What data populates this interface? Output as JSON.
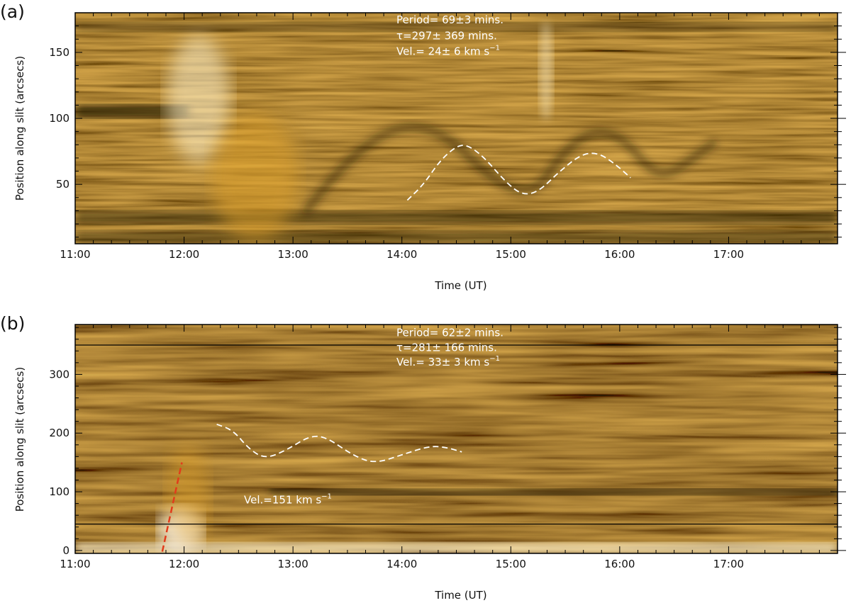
{
  "colors": {
    "dark": "#1e1200",
    "mid": "#8a5a06",
    "bright": "#e0a22a",
    "glow": "#fff2cc",
    "fit_curve": "#ffffff",
    "fit_line": "#e23b1b"
  },
  "chart_data": [
    {
      "type": "heatmap",
      "panel_label": "(a)",
      "xlabel": "Time (UT)",
      "ylabel": "Position along slit (arcsecs)",
      "xlim": [
        11.0,
        18.0
      ],
      "ylim": [
        5,
        180
      ],
      "x_ticks": [
        {
          "value": 11,
          "label": "11:00"
        },
        {
          "value": 12,
          "label": "12:00"
        },
        {
          "value": 13,
          "label": "13:00"
        },
        {
          "value": 14,
          "label": "14:00"
        },
        {
          "value": 15,
          "label": "15:00"
        },
        {
          "value": 16,
          "label": "16:00"
        },
        {
          "value": 17,
          "label": "17:00"
        }
      ],
      "y_ticks": [
        {
          "value": 50,
          "label": "50"
        },
        {
          "value": 100,
          "label": "100"
        },
        {
          "value": 150,
          "label": "150"
        }
      ],
      "annotations": [
        {
          "text": "Period= 69±3 mins.",
          "x": 13.95,
          "y": 172
        },
        {
          "text": "τ=297± 369 mins.",
          "x": 13.95,
          "y": 160
        },
        {
          "text": "Vel.= 24± 6 km s",
          "sup": "−1",
          "x": 13.95,
          "y": 148
        }
      ],
      "fit_curve": [
        {
          "x": 14.05,
          "y": 38
        },
        {
          "x": 14.2,
          "y": 50
        },
        {
          "x": 14.35,
          "y": 68
        },
        {
          "x": 14.5,
          "y": 79
        },
        {
          "x": 14.6,
          "y": 80
        },
        {
          "x": 14.75,
          "y": 71
        },
        {
          "x": 14.95,
          "y": 52
        },
        {
          "x": 15.1,
          "y": 42
        },
        {
          "x": 15.25,
          "y": 44
        },
        {
          "x": 15.45,
          "y": 60
        },
        {
          "x": 15.65,
          "y": 73
        },
        {
          "x": 15.8,
          "y": 74
        },
        {
          "x": 15.95,
          "y": 66
        },
        {
          "x": 16.1,
          "y": 55
        }
      ],
      "horizontal_lines": []
    },
    {
      "type": "heatmap",
      "panel_label": "(b)",
      "xlabel": "Time (UT)",
      "ylabel": "Position along slit (arcsecs)",
      "xlim": [
        11.0,
        18.0
      ],
      "ylim": [
        -5,
        385
      ],
      "x_ticks": [
        {
          "value": 11,
          "label": "11:00"
        },
        {
          "value": 12,
          "label": "12:00"
        },
        {
          "value": 13,
          "label": "13:00"
        },
        {
          "value": 14,
          "label": "14:00"
        },
        {
          "value": 15,
          "label": "15:00"
        },
        {
          "value": 16,
          "label": "16:00"
        },
        {
          "value": 17,
          "label": "17:00"
        }
      ],
      "y_ticks": [
        {
          "value": 0,
          "label": "0"
        },
        {
          "value": 100,
          "label": "100"
        },
        {
          "value": 200,
          "label": "200"
        },
        {
          "value": 300,
          "label": "300"
        }
      ],
      "annotations": [
        {
          "text": "Period= 62±2 mins.",
          "x": 13.95,
          "y": 365
        },
        {
          "text": "τ=281± 166 mins.",
          "x": 13.95,
          "y": 340
        },
        {
          "text": "Vel.= 33± 3 km s",
          "sup": "−1",
          "x": 13.95,
          "y": 315
        },
        {
          "text": "Vel.=151 km s",
          "sup": "−1",
          "x": 12.55,
          "y": 80
        }
      ],
      "fit_curve": [
        {
          "x": 12.3,
          "y": 215
        },
        {
          "x": 12.45,
          "y": 205
        },
        {
          "x": 12.6,
          "y": 172
        },
        {
          "x": 12.75,
          "y": 156
        },
        {
          "x": 12.95,
          "y": 172
        },
        {
          "x": 13.15,
          "y": 195
        },
        {
          "x": 13.3,
          "y": 194
        },
        {
          "x": 13.55,
          "y": 162
        },
        {
          "x": 13.75,
          "y": 148
        },
        {
          "x": 14.0,
          "y": 163
        },
        {
          "x": 14.25,
          "y": 178
        },
        {
          "x": 14.4,
          "y": 176
        },
        {
          "x": 14.55,
          "y": 168
        }
      ],
      "fit_line": [
        {
          "x": 11.8,
          "y": -2
        },
        {
          "x": 11.98,
          "y": 150
        }
      ],
      "horizontal_lines": [
        45,
        350
      ]
    }
  ]
}
